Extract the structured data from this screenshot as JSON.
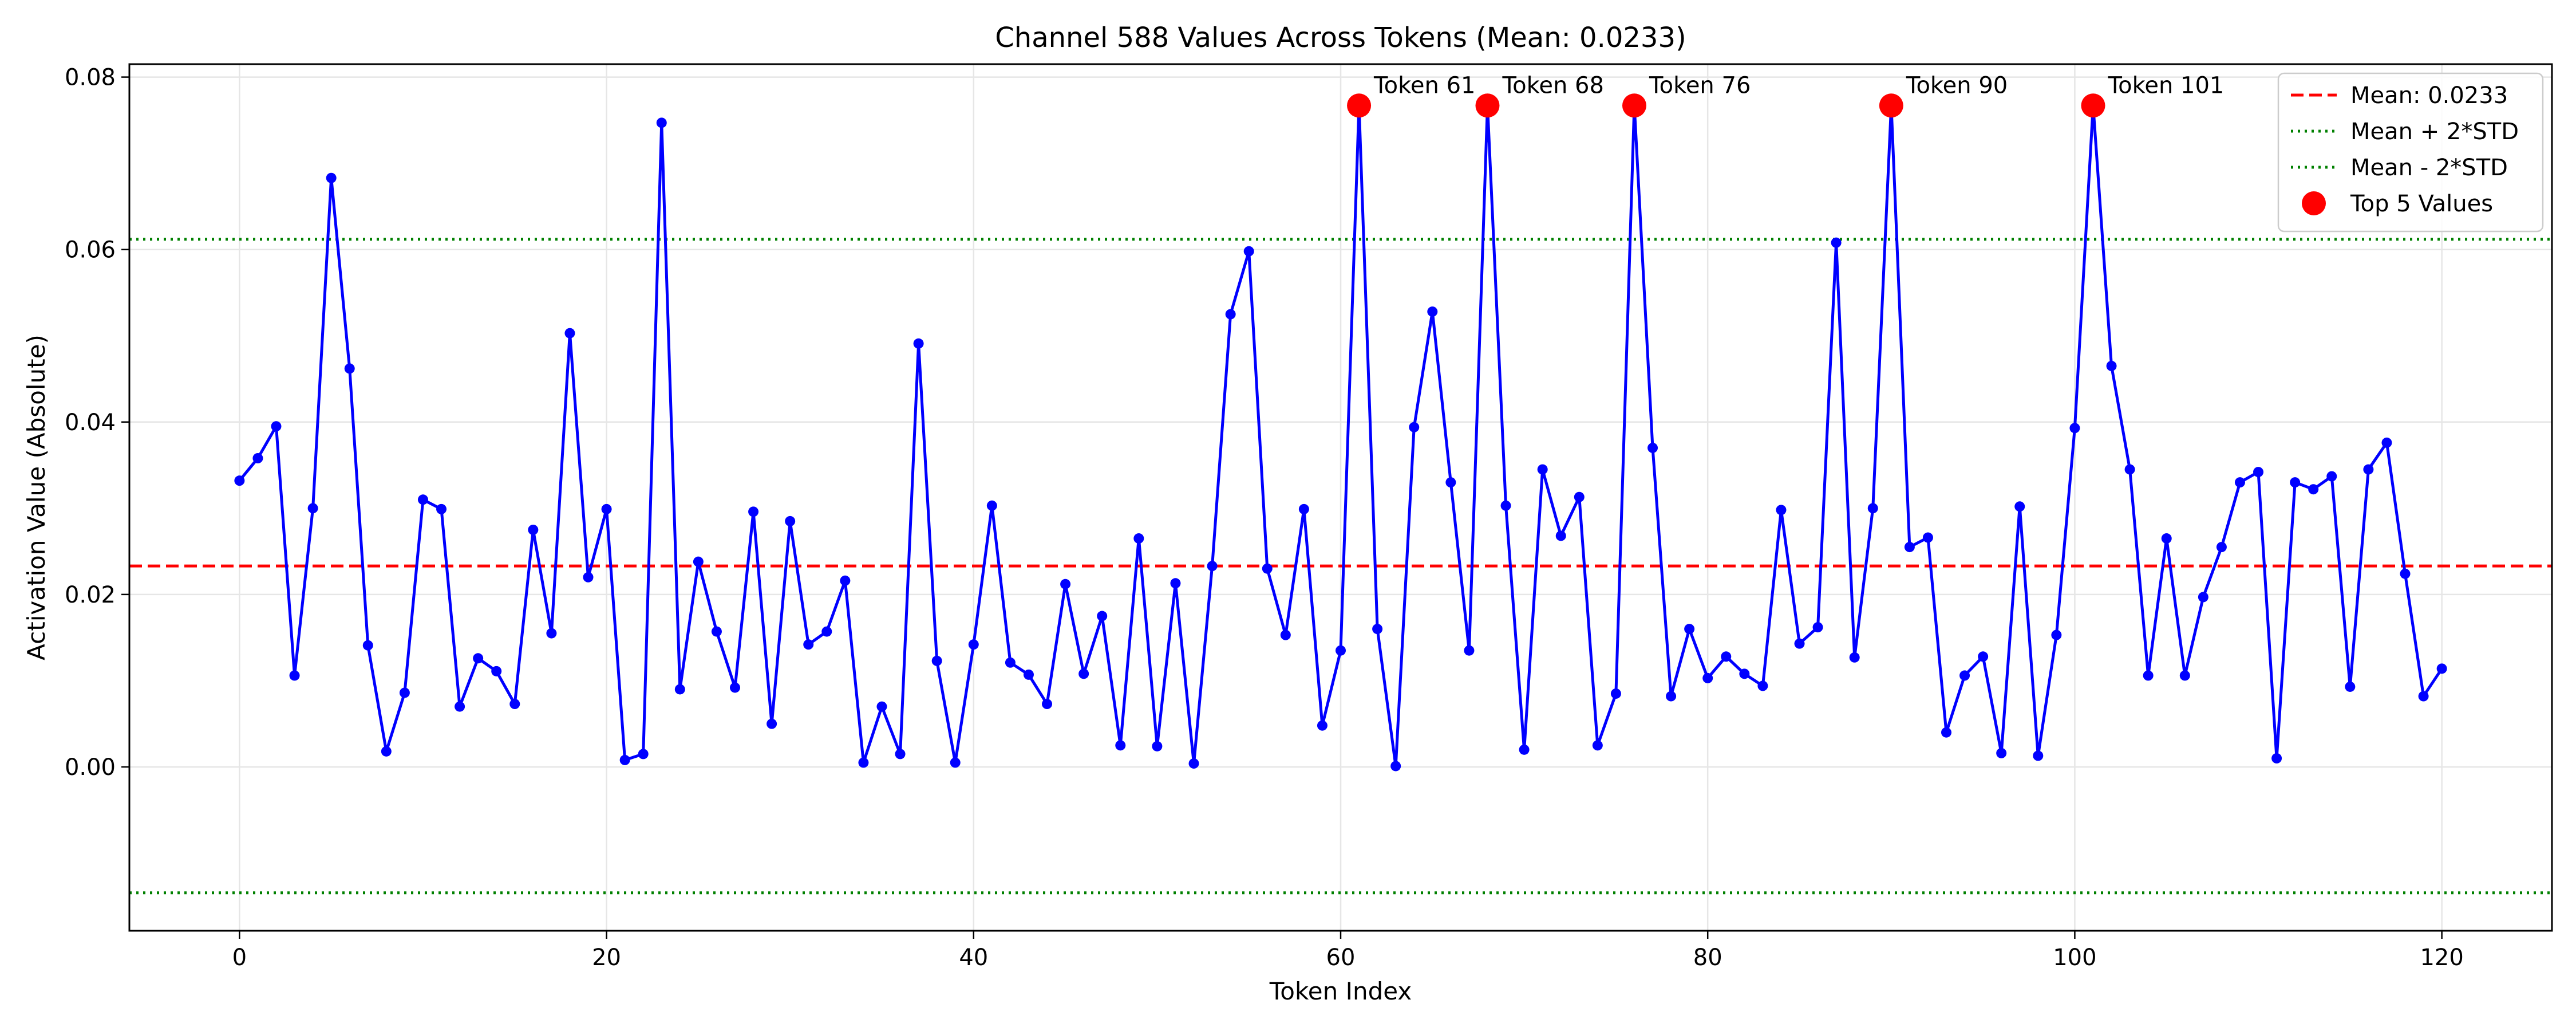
{
  "chart_data": {
    "type": "line",
    "title": "Channel 588 Values Across Tokens (Mean: 0.0233)",
    "xlabel": "Token Index",
    "ylabel": "Activation Value (Absolute)",
    "xlim": [
      -6,
      126
    ],
    "ylim": [
      -0.019,
      0.0815
    ],
    "xticks": [
      0,
      20,
      40,
      60,
      80,
      100,
      120
    ],
    "yticks": [
      0.0,
      0.02,
      0.04,
      0.06,
      0.08
    ],
    "xtick_labels": [
      "0",
      "20",
      "40",
      "60",
      "80",
      "100",
      "120"
    ],
    "ytick_labels": [
      "0.00",
      "0.02",
      "0.04",
      "0.06",
      "0.08"
    ],
    "grid": true,
    "legend_position": "top-right",
    "series": [
      {
        "name": "",
        "color": "#0000ff",
        "marker": "circle",
        "values": [
          0.0332,
          0.0358,
          0.0395,
          0.0106,
          0.03,
          0.0683,
          0.0462,
          0.0141,
          0.0018,
          0.0086,
          0.031,
          0.0299,
          0.007,
          0.0126,
          0.0111,
          0.0073,
          0.0275,
          0.0155,
          0.0503,
          0.022,
          0.0299,
          0.0008,
          0.0015,
          0.0747,
          0.009,
          0.0238,
          0.0157,
          0.0092,
          0.0296,
          0.005,
          0.0285,
          0.0142,
          0.0157,
          0.0216,
          0.0005,
          0.007,
          0.0015,
          0.0491,
          0.0123,
          0.0005,
          0.0142,
          0.0303,
          0.0121,
          0.0107,
          0.0073,
          0.0212,
          0.0108,
          0.0175,
          0.0025,
          0.0265,
          0.0024,
          0.0213,
          0.0004,
          0.0233,
          0.0525,
          0.0598,
          0.023,
          0.0153,
          0.0299,
          0.0048,
          0.0135,
          0.0767,
          0.016,
          0.0001,
          0.0394,
          0.0528,
          0.033,
          0.0135,
          0.0767,
          0.0303,
          0.002,
          0.0345,
          0.0268,
          0.0313,
          0.0025,
          0.0085,
          0.0767,
          0.037,
          0.0082,
          0.016,
          0.0103,
          0.0128,
          0.0108,
          0.0094,
          0.0298,
          0.0143,
          0.0162,
          0.0608,
          0.0127,
          0.03,
          0.0767,
          0.0255,
          0.0266,
          0.004,
          0.0106,
          0.0128,
          0.0016,
          0.0302,
          0.0013,
          0.0153,
          0.0393,
          0.0767,
          0.0465,
          0.0345,
          0.0106,
          0.0265,
          0.0106,
          0.0197,
          0.0255,
          0.033,
          0.0342,
          0.001,
          0.033,
          0.0322,
          0.0337,
          0.0093,
          0.0345,
          0.0376,
          0.0224,
          0.0082,
          0.0114
        ]
      }
    ],
    "hlines": [
      {
        "name": "Mean: 0.0233",
        "value": 0.0233,
        "color": "#ff0000",
        "style": "dashed"
      },
      {
        "name": "Mean + 2*STD",
        "value": 0.0612,
        "color": "#008000",
        "style": "dotted"
      },
      {
        "name": "Mean - 2*STD",
        "value": -0.0146,
        "color": "#008000",
        "style": "dotted"
      }
    ],
    "top_points": {
      "name": "Top 5 Values",
      "color": "#ff0000",
      "points": [
        {
          "x": 61,
          "y": 0.0767,
          "label": "Token 61"
        },
        {
          "x": 68,
          "y": 0.0767,
          "label": "Token 68"
        },
        {
          "x": 76,
          "y": 0.0767,
          "label": "Token 76"
        },
        {
          "x": 90,
          "y": 0.0767,
          "label": "Token 90"
        },
        {
          "x": 101,
          "y": 0.0767,
          "label": "Token 101"
        }
      ]
    }
  }
}
